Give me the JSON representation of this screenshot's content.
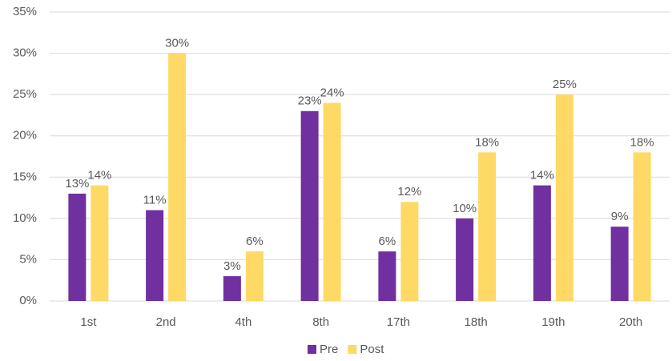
{
  "chart_data": {
    "type": "bar",
    "categories": [
      "1st",
      "2nd",
      "4th",
      "8th",
      "17th",
      "18th",
      "19th",
      "20th"
    ],
    "series": [
      {
        "name": "Pre",
        "color": "#7030a0",
        "values": [
          13,
          11,
          3,
          23,
          6,
          10,
          14,
          9
        ],
        "value_labels": [
          "13%",
          "11%",
          "3%",
          "23%",
          "6%",
          "10%",
          "14%",
          "9%"
        ]
      },
      {
        "name": "Post",
        "color": "#ffd966",
        "values": [
          14,
          30,
          6,
          24,
          12,
          18,
          25,
          18
        ],
        "value_labels": [
          "14%",
          "30%",
          "6%",
          "24%",
          "12%",
          "18%",
          "25%",
          "18%"
        ]
      }
    ],
    "ylim": [
      0,
      35
    ],
    "yticks": [
      {
        "value": 0,
        "label": "0%"
      },
      {
        "value": 5,
        "label": "5%"
      },
      {
        "value": 10,
        "label": "10%"
      },
      {
        "value": 15,
        "label": "15%"
      },
      {
        "value": 20,
        "label": "20%"
      },
      {
        "value": 25,
        "label": "25%"
      },
      {
        "value": 30,
        "label": "30%"
      },
      {
        "value": 35,
        "label": "35%"
      }
    ],
    "grid": true,
    "legend": "bottom"
  }
}
